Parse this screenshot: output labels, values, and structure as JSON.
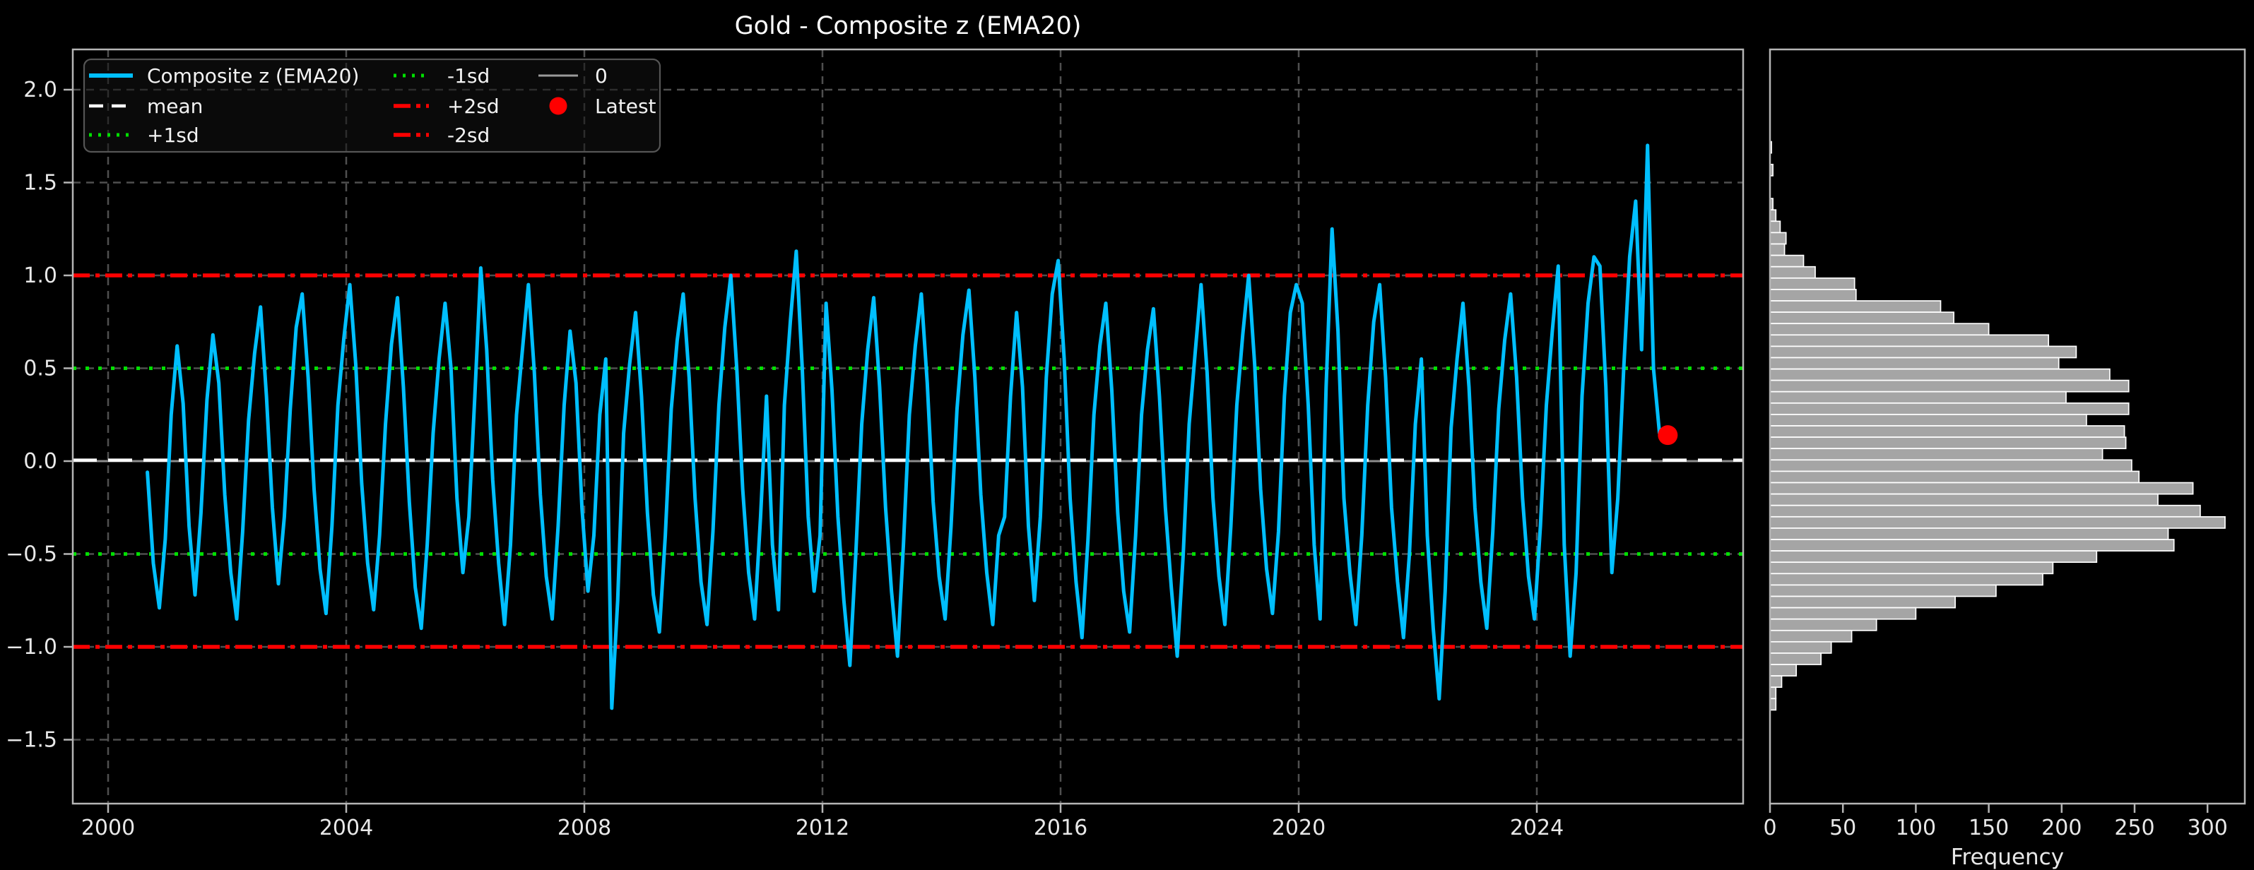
{
  "title": "Gold - Composite z (EMA20)",
  "colors": {
    "background": "#000000",
    "series_line": "#00bfff",
    "mean_line": "#ffffff",
    "sd1_line": "#00e000",
    "sd2_line": "#ff0000",
    "zero_line": "#8c8c8c",
    "grid": "#4f4f4f",
    "spine": "#b5b5b5",
    "tick_text": "#e8e8e8",
    "hist_bar_fill": "#a5a5a5",
    "hist_bar_edge": "#ffffff",
    "latest_marker": "#ff0000",
    "legend_border": "#555555"
  },
  "legend": {
    "items": [
      {
        "label": "Composite z (EMA20)",
        "swatch": "line",
        "color": "#00bfff",
        "dash": "",
        "width": 6,
        "col": 0,
        "row": 0
      },
      {
        "label": "mean",
        "swatch": "line",
        "color": "#ffffff",
        "dash": "20 12",
        "width": 4.5,
        "col": 0,
        "row": 1
      },
      {
        "label": "+1sd",
        "swatch": "line",
        "color": "#00e000",
        "dash": "4 9",
        "width": 5,
        "col": 0,
        "row": 2
      },
      {
        "label": "-1sd",
        "swatch": "line",
        "color": "#00e000",
        "dash": "4 9",
        "width": 5,
        "col": 1,
        "row": 0
      },
      {
        "label": "+2sd",
        "swatch": "line",
        "color": "#ff0000",
        "dash": "24 8 6 8",
        "width": 5.5,
        "col": 1,
        "row": 1
      },
      {
        "label": "-2sd",
        "swatch": "line",
        "color": "#ff0000",
        "dash": "24 8 6 8",
        "width": 5.5,
        "col": 1,
        "row": 2
      },
      {
        "label": "0",
        "swatch": "line",
        "color": "#9a9a9a",
        "dash": "",
        "width": 3,
        "col": 2,
        "row": 0
      },
      {
        "label": "Latest",
        "swatch": "marker",
        "color": "#ff0000",
        "dash": "",
        "width": 0,
        "col": 2,
        "row": 1
      }
    ]
  },
  "timeseries_panel": {
    "x_ticks": [
      2000,
      2004,
      2008,
      2012,
      2016,
      2020,
      2024
    ],
    "y_ticks": [
      2.0,
      1.5,
      1.0,
      0.5,
      0.0,
      -0.5,
      -1.0,
      -1.5
    ],
    "y_tick_labels": [
      "2.0",
      "1.5",
      "1.0",
      "0.5",
      "0.0",
      "−0.5",
      "−1.0",
      "−1.5"
    ]
  },
  "hist_panel": {
    "x_ticks": [
      0,
      50,
      100,
      150,
      200,
      250,
      300
    ],
    "xlabel": "Frequency"
  },
  "chart_data": [
    {
      "type": "line",
      "name": "Composite z (EMA20)",
      "xlabel": "",
      "ylabel": "",
      "xlim": [
        1999.4,
        2027.5
      ],
      "ylim": [
        -1.84,
        2.22
      ],
      "grid": true,
      "legend_position": "upper left",
      "x_start": 2000.66,
      "x_step": 0.1,
      "y": [
        -0.06,
        -0.55,
        -0.79,
        -0.42,
        0.25,
        0.62,
        0.31,
        -0.35,
        -0.72,
        -0.28,
        0.33,
        0.68,
        0.42,
        -0.18,
        -0.6,
        -0.85,
        -0.38,
        0.22,
        0.58,
        0.83,
        0.35,
        -0.25,
        -0.66,
        -0.3,
        0.28,
        0.72,
        0.9,
        0.45,
        -0.15,
        -0.58,
        -0.82,
        -0.35,
        0.3,
        0.66,
        0.95,
        0.52,
        -0.12,
        -0.55,
        -0.8,
        -0.4,
        0.2,
        0.63,
        0.88,
        0.4,
        -0.22,
        -0.68,
        -0.9,
        -0.45,
        0.15,
        0.55,
        0.85,
        0.5,
        -0.2,
        -0.6,
        -0.3,
        0.35,
        1.04,
        0.6,
        -0.1,
        -0.55,
        -0.88,
        -0.45,
        0.25,
        0.6,
        0.95,
        0.48,
        -0.18,
        -0.62,
        -0.85,
        -0.35,
        0.3,
        0.7,
        0.42,
        -0.25,
        -0.7,
        -0.4,
        0.25,
        0.55,
        -1.33,
        -0.75,
        0.15,
        0.52,
        0.8,
        0.35,
        -0.28,
        -0.72,
        -0.92,
        -0.4,
        0.28,
        0.65,
        0.9,
        0.45,
        -0.2,
        -0.65,
        -0.88,
        -0.38,
        0.3,
        0.72,
        1.0,
        0.5,
        -0.15,
        -0.6,
        -0.85,
        -0.3,
        0.35,
        -0.45,
        -0.8,
        0.3,
        0.75,
        1.13,
        0.5,
        -0.3,
        -0.7,
        -0.4,
        0.85,
        0.38,
        -0.3,
        -0.75,
        -1.1,
        -0.5,
        0.2,
        0.6,
        0.88,
        0.4,
        -0.25,
        -0.7,
        -1.05,
        -0.45,
        0.25,
        0.62,
        0.9,
        0.42,
        -0.22,
        -0.62,
        -0.85,
        -0.35,
        0.28,
        0.68,
        0.92,
        0.45,
        -0.18,
        -0.6,
        -0.88,
        -0.4,
        -0.3,
        0.35,
        0.8,
        0.4,
        -0.35,
        -0.75,
        -0.3,
        0.45,
        0.9,
        1.08,
        0.55,
        -0.2,
        -0.65,
        -0.95,
        -0.42,
        0.25,
        0.62,
        0.85,
        0.38,
        -0.28,
        -0.7,
        -0.92,
        -0.4,
        0.25,
        0.6,
        0.82,
        0.35,
        -0.25,
        -0.68,
        -1.05,
        -0.5,
        0.2,
        0.58,
        0.95,
        0.48,
        -0.2,
        -0.62,
        -0.88,
        -0.35,
        0.3,
        0.68,
        1.0,
        0.52,
        -0.15,
        -0.58,
        -0.82,
        -0.38,
        0.35,
        0.8,
        0.95,
        0.85,
        0.3,
        -0.45,
        -0.85,
        0.4,
        1.25,
        0.7,
        -0.2,
        -0.6,
        -0.88,
        -0.4,
        0.3,
        0.75,
        0.95,
        0.45,
        -0.25,
        -0.65,
        -0.95,
        -0.5,
        0.2,
        0.55,
        -0.4,
        -0.9,
        -1.28,
        -0.7,
        0.18,
        0.55,
        0.85,
        0.4,
        -0.25,
        -0.65,
        -0.9,
        -0.38,
        0.28,
        0.65,
        0.9,
        0.45,
        -0.2,
        -0.62,
        -0.85,
        -0.35,
        0.3,
        0.7,
        1.05,
        -0.45,
        -1.05,
        -0.6,
        0.35,
        0.85,
        1.1,
        1.05,
        0.4,
        -0.6,
        -0.2,
        0.5,
        1.1,
        1.4,
        0.6,
        1.7,
        0.5,
        0.15
      ],
      "ref_lines": [
        {
          "label": "mean",
          "value": 0.005,
          "style": "dashed",
          "color": "#ffffff"
        },
        {
          "label": "+1sd",
          "value": 0.5,
          "style": "dotted",
          "color": "#00e000"
        },
        {
          "label": "-1sd",
          "value": -0.5,
          "style": "dotted",
          "color": "#00e000"
        },
        {
          "label": "+2sd",
          "value": 1.0,
          "style": "dashdot",
          "color": "#ff0000"
        },
        {
          "label": "-2sd",
          "value": -1.0,
          "style": "dashdot",
          "color": "#ff0000"
        },
        {
          "label": "0",
          "value": 0.0,
          "style": "solid",
          "color": "#8c8c8c"
        }
      ],
      "latest_point": {
        "label": "Latest",
        "year": 2026.2,
        "z": 0.14
      }
    },
    {
      "type": "bar",
      "orientation": "horizontal",
      "xlabel": "Frequency",
      "xlim": [
        0,
        325
      ],
      "bins": 50,
      "bin_z_top": 1.72,
      "bin_z_step": 0.0612,
      "counts": [
        1,
        0,
        2,
        0,
        0,
        2,
        4,
        7,
        11,
        10,
        23,
        31,
        58,
        59,
        117,
        126,
        150,
        191,
        210,
        198,
        233,
        246,
        203,
        246,
        217,
        243,
        244,
        228,
        248,
        253,
        290,
        266,
        295,
        312,
        273,
        277,
        224,
        194,
        187,
        155,
        127,
        100,
        73,
        56,
        42,
        35,
        18,
        8,
        4,
        4
      ]
    }
  ]
}
